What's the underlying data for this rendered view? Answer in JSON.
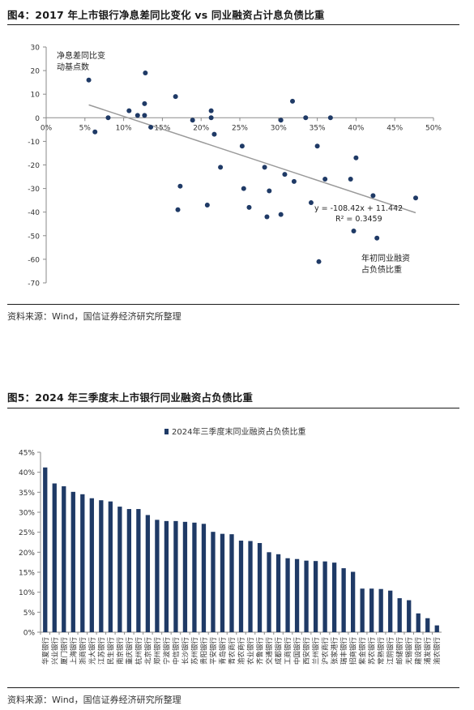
{
  "figure4": {
    "title": "图4：2017 年上市银行净息差同比变化 vs 同业融资占计息负债比重",
    "source": "资料来源：Wind，国信证券经济研究所整理"
  },
  "figure5": {
    "title": "图5：2024 年三季度末上市银行同业融资占负债比重",
    "source": "资料来源：Wind，国信证券经济研究所整理"
  },
  "colors": {
    "marker": "#1f3a66",
    "trend": "#9a9a9a",
    "bar": "#1f3a66",
    "axis": "#8a8a8a"
  },
  "chart_data": [
    {
      "type": "scatter",
      "title": "",
      "ylabel": "净息差同比变动基点数",
      "ylabel_lines": [
        "净息差同比变",
        "动基点数"
      ],
      "xlabel": "年初同业融资占负债比重",
      "xlabel_lines": [
        "年初同业融资",
        "占负债比重"
      ],
      "xlim": [
        0,
        0.5
      ],
      "ylim": [
        -70,
        30
      ],
      "xticks": [
        0,
        0.05,
        0.1,
        0.15,
        0.2,
        0.25,
        0.3,
        0.35,
        0.4,
        0.45,
        0.5
      ],
      "xtick_labels": [
        "0%",
        "5%",
        "10%",
        "15%",
        "20%",
        "25%",
        "30%",
        "35%",
        "40%",
        "45%",
        "50%"
      ],
      "yticks": [
        30,
        20,
        10,
        0,
        -10,
        -20,
        -30,
        -40,
        -50,
        -60,
        -70
      ],
      "ytick_labels": [
        "30",
        "20",
        "10",
        "0",
        "-10",
        "-20",
        "-30",
        "-40",
        "-50",
        "-60",
        "-70"
      ],
      "grid": false,
      "points": [
        {
          "x": 0.055,
          "y": 16
        },
        {
          "x": 0.063,
          "y": -6
        },
        {
          "x": 0.08,
          "y": 0
        },
        {
          "x": 0.107,
          "y": 3
        },
        {
          "x": 0.118,
          "y": 1
        },
        {
          "x": 0.127,
          "y": 6
        },
        {
          "x": 0.128,
          "y": 19
        },
        {
          "x": 0.127,
          "y": 1
        },
        {
          "x": 0.135,
          "y": -4
        },
        {
          "x": 0.167,
          "y": 9
        },
        {
          "x": 0.17,
          "y": -39
        },
        {
          "x": 0.173,
          "y": -29
        },
        {
          "x": 0.189,
          "y": -1
        },
        {
          "x": 0.208,
          "y": -37
        },
        {
          "x": 0.213,
          "y": 3
        },
        {
          "x": 0.213,
          "y": 0
        },
        {
          "x": 0.217,
          "y": -7
        },
        {
          "x": 0.225,
          "y": -21
        },
        {
          "x": 0.253,
          "y": -12
        },
        {
          "x": 0.255,
          "y": -30
        },
        {
          "x": 0.262,
          "y": -38
        },
        {
          "x": 0.282,
          "y": -21
        },
        {
          "x": 0.285,
          "y": -42
        },
        {
          "x": 0.288,
          "y": -31
        },
        {
          "x": 0.303,
          "y": -1
        },
        {
          "x": 0.303,
          "y": -41
        },
        {
          "x": 0.308,
          "y": -24
        },
        {
          "x": 0.318,
          "y": 7
        },
        {
          "x": 0.32,
          "y": -27
        },
        {
          "x": 0.335,
          "y": 0
        },
        {
          "x": 0.342,
          "y": -36
        },
        {
          "x": 0.35,
          "y": -12
        },
        {
          "x": 0.352,
          "y": -61
        },
        {
          "x": 0.36,
          "y": -26
        },
        {
          "x": 0.367,
          "y": 0
        },
        {
          "x": 0.393,
          "y": -26
        },
        {
          "x": 0.397,
          "y": -48
        },
        {
          "x": 0.4,
          "y": -17
        },
        {
          "x": 0.422,
          "y": -33
        },
        {
          "x": 0.427,
          "y": -51
        },
        {
          "x": 0.477,
          "y": -34
        }
      ],
      "trendline": {
        "slope": -108.42,
        "intercept": 11.442,
        "x_range": [
          0.055,
          0.477
        ],
        "equation_label": "y = -108.42x + 11.442",
        "r2_label": "R² = 0.3459"
      }
    },
    {
      "type": "bar",
      "title": "",
      "legend": {
        "position": "top-center",
        "entries": [
          "2024年三季度末同业融资占负债比重"
        ]
      },
      "xlabel": "",
      "ylabel": "",
      "ylim": [
        0,
        0.45
      ],
      "yticks": [
        0,
        0.05,
        0.1,
        0.15,
        0.2,
        0.25,
        0.3,
        0.35,
        0.4,
        0.45
      ],
      "ytick_labels": [
        "0%",
        "5%",
        "10%",
        "15%",
        "20%",
        "25%",
        "30%",
        "35%",
        "40%",
        "45%"
      ],
      "grid": false,
      "series": [
        {
          "name": "2024年三季度末同业融资占负债比重",
          "values": [
            0.412,
            0.372,
            0.365,
            0.351,
            0.345,
            0.335,
            0.33,
            0.327,
            0.314,
            0.308,
            0.308,
            0.293,
            0.281,
            0.278,
            0.278,
            0.276,
            0.274,
            0.271,
            0.251,
            0.246,
            0.245,
            0.229,
            0.228,
            0.223,
            0.2,
            0.195,
            0.185,
            0.183,
            0.179,
            0.178,
            0.177,
            0.174,
            0.16,
            0.151,
            0.109,
            0.109,
            0.108,
            0.104,
            0.085,
            0.08,
            0.047,
            0.035,
            0.017
          ]
        }
      ],
      "categories": [
        "华夏银行",
        "兴业银行",
        "厦门银行",
        "上海银行",
        "浙商银行",
        "光大银行",
        "江苏银行",
        "民生银行",
        "南京银行",
        "重庆银行",
        "杭州银行",
        "北京银行",
        "郑州银行",
        "宁波银行",
        "中信银行",
        "长沙银行",
        "苏州银行",
        "贵阳银行",
        "平安银行",
        "青岛银行",
        "青农商行",
        "渝农商行",
        "农业银行",
        "齐鲁银行",
        "交通银行",
        "成都银行",
        "工商银行",
        "中国银行",
        "西安银行",
        "兰州银行",
        "沪农商行",
        "张家港行",
        "瑞丰银行",
        "招商银行",
        "紫金银行",
        "苏农银行",
        "常熟银行",
        "江阴银行",
        "邮储银行",
        "无锡银行",
        "建设银行",
        "浦发银行",
        "渝农银行"
      ]
    }
  ]
}
